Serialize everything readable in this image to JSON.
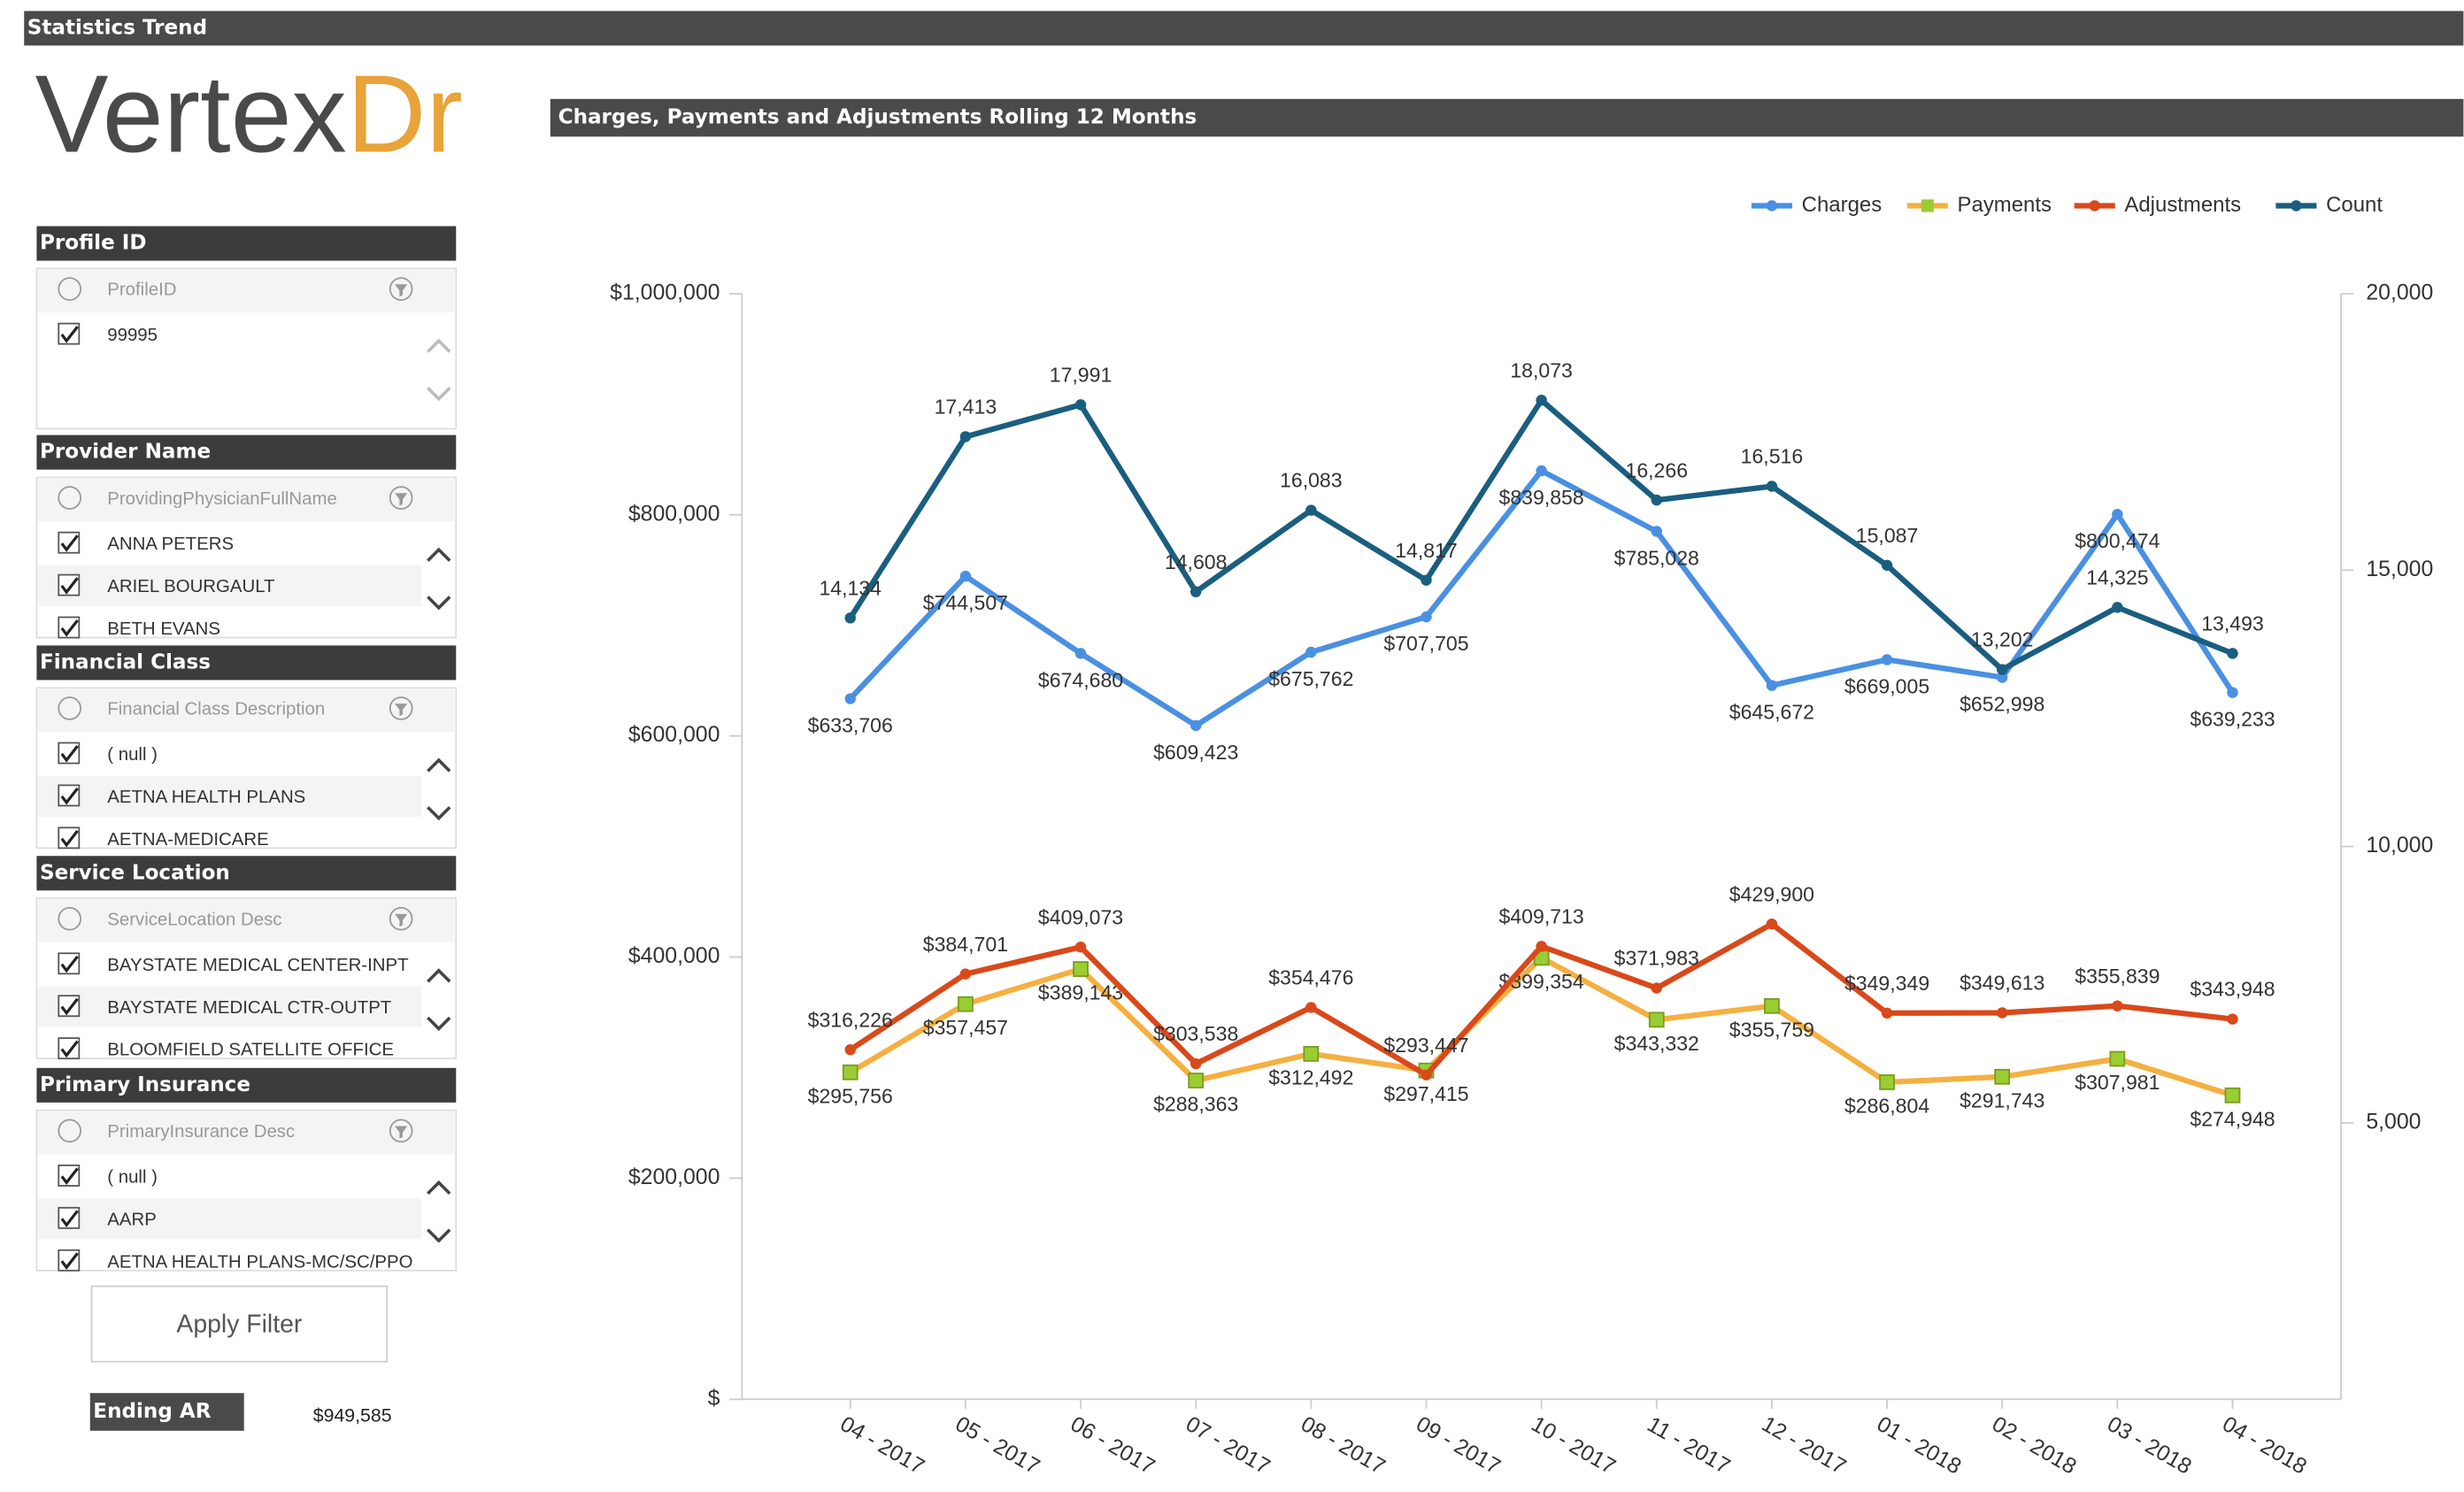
{
  "header": {
    "title": "Statistics Trend"
  },
  "logo": {
    "part1": "Vertex",
    "part2": "Dr"
  },
  "sidebar": {
    "sections": [
      {
        "title": "Profile ID",
        "placeholder": "ProfileID",
        "items": [
          "99995"
        ]
      },
      {
        "title": "Provider Name",
        "placeholder": "ProvidingPhysicianFullName",
        "items": [
          "ANNA PETERS",
          "ARIEL BOURGAULT",
          "BETH EVANS"
        ]
      },
      {
        "title": "Financial Class",
        "placeholder": "Financial Class Description",
        "items": [
          "( null )",
          "AETNA HEALTH PLANS",
          "AETNA-MEDICARE"
        ]
      },
      {
        "title": "Service Location",
        "placeholder": "ServiceLocation Desc",
        "items": [
          "BAYSTATE MEDICAL CENTER-INPT",
          "BAYSTATE MEDICAL CTR-OUTPT",
          "BLOOMFIELD SATELLITE OFFICE"
        ]
      },
      {
        "title": "Primary Insurance",
        "placeholder": "PrimaryInsurance Desc",
        "items": [
          "( null )",
          "AARP",
          "AETNA HEALTH PLANS-MC/SC/PPO"
        ]
      }
    ],
    "button": "Apply Filter",
    "ending_ar": {
      "label": "Ending AR",
      "value": "$949,585"
    }
  },
  "chart_data": {
    "type": "line",
    "title": "Charges, Payments and Adjustments Rolling 12 Months",
    "categories": [
      "04 - 2017",
      "05 - 2017",
      "06 - 2017",
      "07 - 2017",
      "08 - 2017",
      "09 - 2017",
      "10 - 2017",
      "11 - 2017",
      "12 - 2017",
      "01 - 2018",
      "02 - 2018",
      "03 - 2018",
      "04 - 2018"
    ],
    "series": [
      {
        "name": "Charges",
        "color": "#4a90e2",
        "values": [
          633706,
          744507,
          674680,
          609423,
          675762,
          707705,
          839858,
          785028,
          645672,
          669005,
          652998,
          800474,
          639233
        ],
        "value_labels": [
          "$633,706",
          "$744,507",
          "$674,680",
          "$609,423",
          "$675,762",
          "$707,705",
          "$839,858",
          "$785,028",
          "$645,672",
          "$669,005",
          "$652,998",
          "$800,474",
          "$639,233"
        ]
      },
      {
        "name": "Payments",
        "color": "#f5b041",
        "marker_color": "#9acd32",
        "values": [
          295756,
          357457,
          389143,
          288363,
          312492,
          297415,
          399354,
          343332,
          355759,
          286804,
          291743,
          307981,
          274948
        ],
        "value_labels": [
          "$295,756",
          "$357,457",
          "$389,143",
          "$288,363",
          "$312,492",
          "$297,415",
          "$399,354",
          "$343,332",
          "$355,759",
          "$286,804",
          "$291,743",
          "$307,981",
          "$274,948"
        ]
      },
      {
        "name": "Adjustments",
        "color": "#d9491a",
        "values": [
          316226,
          384701,
          409073,
          303538,
          354476,
          293447,
          409713,
          371983,
          429900,
          349349,
          349613,
          355839,
          343948
        ],
        "value_labels": [
          "$316,226",
          "$384,701",
          "$409,073",
          "$303,538",
          "$354,476",
          "$293,447",
          "$409,713",
          "$371,983",
          "$429,900",
          "$349,349",
          "$349,613",
          "$355,839",
          "$343,948"
        ]
      },
      {
        "name": "Count",
        "color": "#1a5e80",
        "axis": "y2",
        "values": [
          14134,
          17413,
          17991,
          14608,
          16083,
          14817,
          18073,
          16266,
          16516,
          15087,
          13202,
          14325,
          13493
        ],
        "value_labels": [
          "14,134",
          "17,413",
          "17,991",
          "14,608",
          "16,083",
          "14,817",
          "18,073",
          "16,266",
          "16,516",
          "15,087",
          "13,202",
          "14,325",
          "13,493"
        ]
      }
    ],
    "ylim": [
      0,
      1000000
    ],
    "yticks": [
      {
        "value": 0,
        "label": "$"
      },
      {
        "value": 200000,
        "label": "$200,000"
      },
      {
        "value": 400000,
        "label": "$400,000"
      },
      {
        "value": 600000,
        "label": "$600,000"
      },
      {
        "value": 800000,
        "label": "$800,000"
      },
      {
        "value": 1000000,
        "label": "$1,000,000"
      }
    ],
    "y2lim": [
      0,
      20000
    ],
    "y2ticks": [
      {
        "value": 5000,
        "label": "5,000"
      },
      {
        "value": 10000,
        "label": "10,000"
      },
      {
        "value": 15000,
        "label": "15,000"
      },
      {
        "value": 20000,
        "label": "20,000"
      }
    ],
    "legend": "top-right"
  }
}
